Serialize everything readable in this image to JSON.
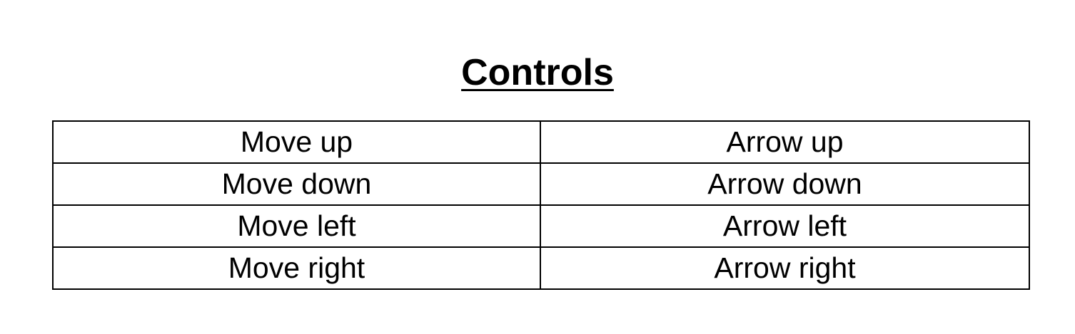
{
  "title": "Controls",
  "controls": [
    {
      "action": "Move up",
      "key": "Arrow up"
    },
    {
      "action": "Move down",
      "key": "Arrow down"
    },
    {
      "action": "Move left",
      "key": "Arrow left"
    },
    {
      "action": "Move right",
      "key": "Arrow right"
    }
  ]
}
